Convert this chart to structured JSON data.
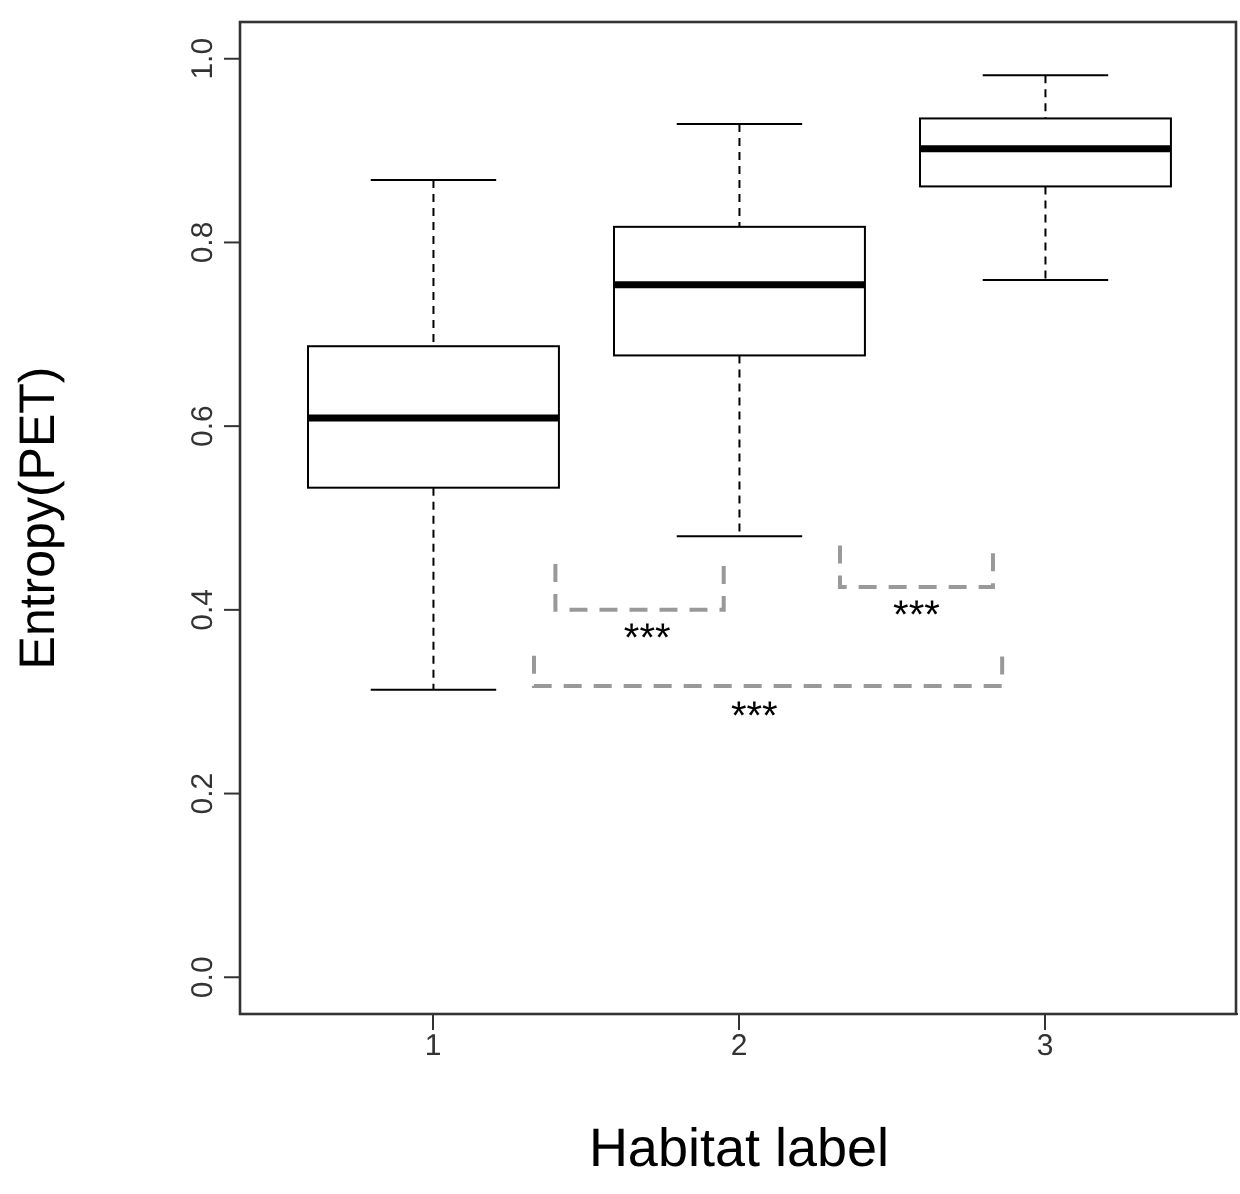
{
  "chart_data": {
    "type": "box",
    "xlabel": "Habitat label",
    "ylabel": "Entropy(PET)",
    "categories": [
      "1",
      "2",
      "3"
    ],
    "color": "#000000",
    "boxes": [
      {
        "low": 0.313,
        "q1": 0.533,
        "median": 0.609,
        "q3": 0.687,
        "high": 0.868
      },
      {
        "low": 0.48,
        "q1": 0.677,
        "median": 0.754,
        "q3": 0.817,
        "high": 0.929
      },
      {
        "low": 0.759,
        "q1": 0.861,
        "median": 0.902,
        "q3": 0.935,
        "high": 0.982
      }
    ],
    "ylim": [
      -0.04,
      1.04
    ],
    "yticks": [
      {
        "value": 0,
        "label": "0.0"
      },
      {
        "value": 0.2,
        "label": "0.2"
      },
      {
        "value": 0.4,
        "label": "0.4"
      },
      {
        "value": 0.6,
        "label": "0.6"
      },
      {
        "value": 0.8,
        "label": "0.8"
      },
      {
        "value": 1,
        "label": "1.0"
      }
    ],
    "annotations": [
      "***",
      "***",
      "***"
    ]
  }
}
